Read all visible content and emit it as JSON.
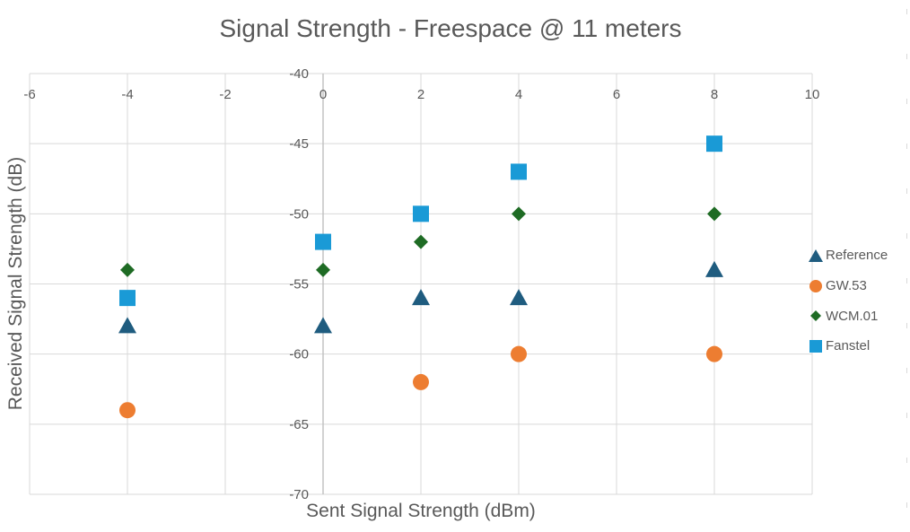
{
  "chart_data": {
    "type": "scatter",
    "title": "Signal Strength - Freespace @ 11 meters",
    "xlabel": "Sent Signal Strength (dBm)",
    "ylabel": "Received Signal Strength (dB)",
    "xlim": [
      -6,
      10
    ],
    "ylim": [
      -70,
      -40
    ],
    "x_ticks": [
      "-6",
      "-4",
      "-2",
      "0",
      "2",
      "4",
      "6",
      "8",
      "10"
    ],
    "y_ticks": [
      "-40",
      "-45",
      "-50",
      "-55",
      "-60",
      "-65",
      "-70"
    ],
    "grid": true,
    "legend_position": "right",
    "series": [
      {
        "name": "Reference",
        "marker": "triangle",
        "color": "#1f5c7f",
        "points": [
          [
            -4,
            -58
          ],
          [
            0,
            -58
          ],
          [
            2,
            -56
          ],
          [
            4,
            -56
          ],
          [
            8,
            -54
          ]
        ]
      },
      {
        "name": "GW.53",
        "marker": "circle",
        "color": "#ed7d31",
        "points": [
          [
            -4,
            -64
          ],
          [
            2,
            -62
          ],
          [
            4,
            -60
          ],
          [
            8,
            -60
          ]
        ]
      },
      {
        "name": "WCM.01",
        "marker": "diamond",
        "color": "#1e6b24",
        "points": [
          [
            -4,
            -54
          ],
          [
            0,
            -54
          ],
          [
            2,
            -52
          ],
          [
            4,
            -50
          ],
          [
            8,
            -50
          ]
        ]
      },
      {
        "name": "Fanstel",
        "marker": "square",
        "color": "#1a9ad6",
        "points": [
          [
            -4,
            -56
          ],
          [
            0,
            -52
          ],
          [
            2,
            -50
          ],
          [
            4,
            -47
          ],
          [
            8,
            -45
          ]
        ]
      }
    ]
  }
}
